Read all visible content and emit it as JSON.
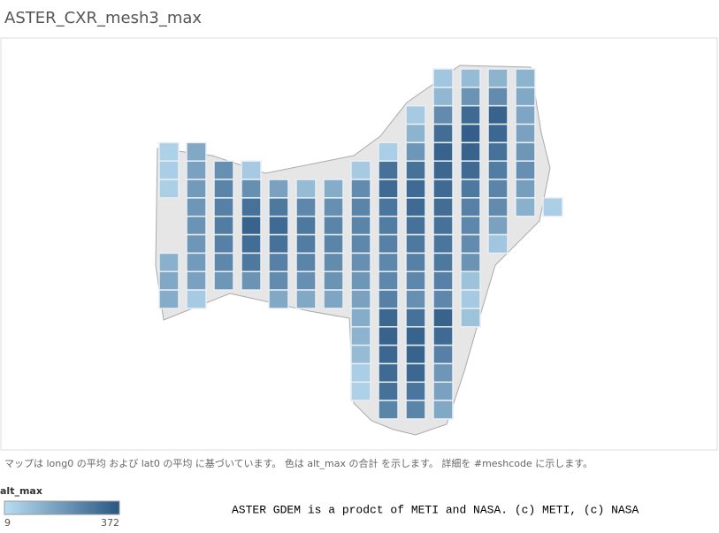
{
  "title": "ASTER_CXR_mesh3_max",
  "caption": "マップは long0 の平均 および lat0 の平均 に基づいています。 色は alt_max の合計 を示します。 詳細を #meshcode に示します。",
  "attribution": "ASTER GDEM is a prodct of METI and NASA. (c) METI, (c) NASA",
  "chart_data": {
    "type": "heatmap",
    "legend": {
      "title": "alt_max",
      "min": 9,
      "max": 372,
      "color_low": "#b9ddf1",
      "color_high": "#2a5783"
    },
    "values": [
      [
        null,
        null,
        null,
        null,
        40,
        50,
        45,
        null,
        null,
        null,
        130,
        150,
        140,
        null,
        null,
        null,
        null,
        null,
        null
      ],
      [
        null,
        null,
        null,
        null,
        150,
        170,
        190,
        200,
        210,
        200,
        190,
        170,
        60,
        null,
        null,
        null,
        null,
        null,
        null
      ],
      [
        null,
        null,
        null,
        null,
        null,
        220,
        250,
        260,
        270,
        260,
        240,
        200,
        null,
        null,
        null,
        null,
        null,
        null,
        null
      ],
      [
        null,
        null,
        null,
        null,
        null,
        60,
        220,
        300,
        340,
        310,
        280,
        210,
        null,
        null,
        null,
        null,
        null,
        null,
        null
      ],
      [
        null,
        null,
        null,
        null,
        null,
        null,
        170,
        280,
        320,
        300,
        260,
        230,
        150,
        null,
        null,
        null,
        null,
        null,
        null
      ],
      [
        null,
        null,
        null,
        null,
        null,
        null,
        100,
        240,
        280,
        270,
        250,
        220,
        150,
        null,
        null,
        null,
        null,
        null,
        null
      ],
      [
        null,
        null,
        null,
        null,
        null,
        null,
        140,
        220,
        250,
        250,
        230,
        210,
        160,
        null,
        null,
        null,
        null,
        null,
        null
      ],
      [
        null,
        null,
        null,
        null,
        null,
        60,
        230,
        250,
        250,
        240,
        220,
        200,
        170,
        140,
        120,
        100,
        50,
        40,
        null
      ],
      [
        null,
        null,
        null,
        null,
        50,
        300,
        320,
        290,
        270,
        260,
        240,
        240,
        260,
        330,
        340,
        330,
        320,
        300,
        250
      ],
      [
        null,
        null,
        60,
        120,
        200,
        300,
        320,
        320,
        300,
        280,
        260,
        240,
        220,
        300,
        340,
        340,
        330,
        290,
        250
      ],
      [
        70,
        110,
        230,
        310,
        340,
        330,
        320,
        310,
        300,
        290,
        280,
        260,
        240,
        340,
        320,
        260,
        200,
        170,
        150
      ],
      [
        100,
        210,
        320,
        350,
        340,
        320,
        280,
        260,
        240,
        230,
        210,
        80,
        60,
        80,
        null,
        null,
        null,
        null,
        null
      ],
      [
        120,
        230,
        340,
        330,
        300,
        270,
        250,
        230,
        170,
        70,
        null,
        null,
        null,
        null,
        null,
        null,
        null,
        null,
        null
      ],
      [
        120,
        150,
        160,
        170,
        200,
        220,
        180,
        130,
        null,
        null,
        null,
        null,
        null,
        null,
        null,
        null,
        null,
        null,
        null
      ],
      [
        null,
        null,
        null,
        null,
        null,
        null,
        null,
        50,
        null,
        null,
        null,
        null,
        null,
        null,
        null,
        null,
        null,
        null,
        null
      ]
    ]
  }
}
